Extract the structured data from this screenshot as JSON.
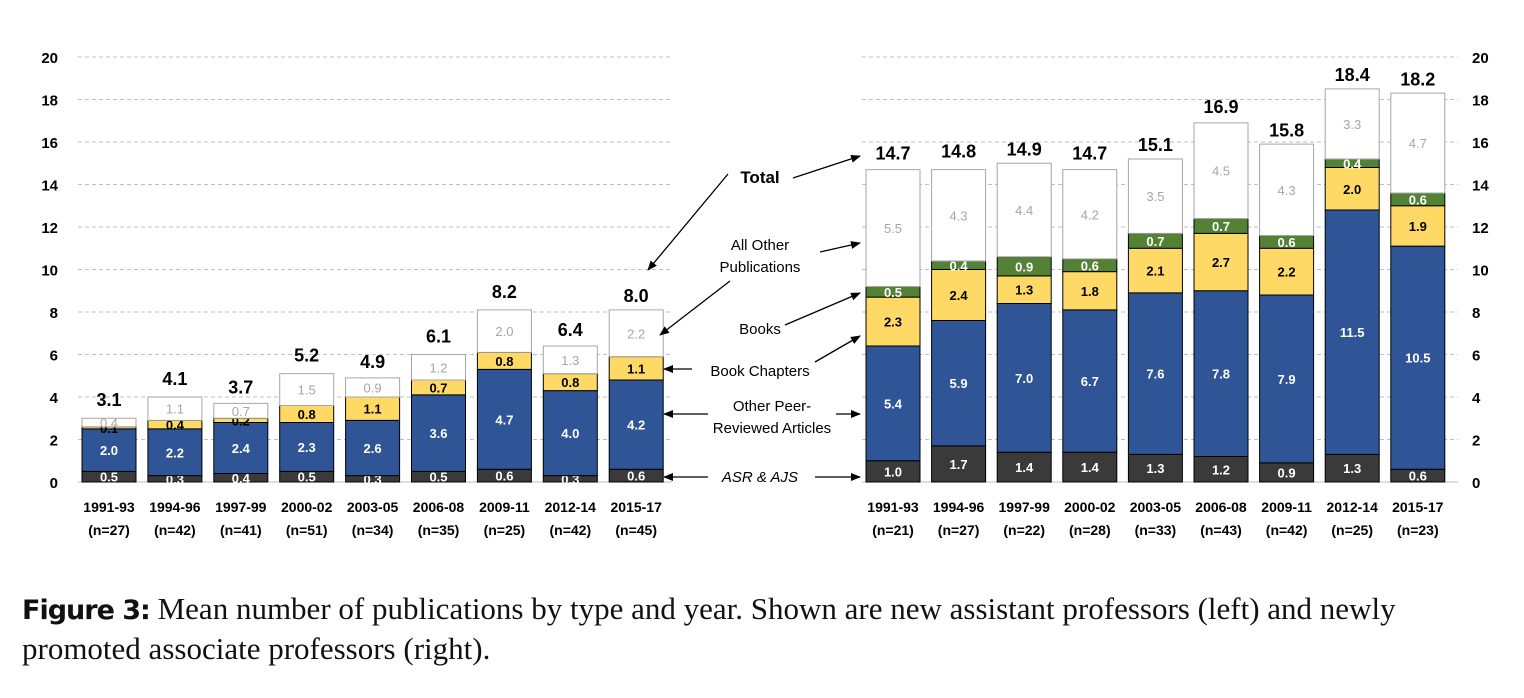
{
  "figure": {
    "caption_label": "Figure 3:",
    "caption_text": "Mean number of publications by type and year. Shown are new assistant professors (left) and newly promoted associate professors (right)."
  },
  "colors": {
    "asr_ajs": "#3a3a3a",
    "peer_reviewed": "#2f5597",
    "book_chapters": "#ffd966",
    "books": "#548235",
    "other": "#ffffff",
    "grid": "#bfbfbf"
  },
  "annotations": [
    {
      "key": "total",
      "lines": [
        "Total"
      ],
      "bold": true,
      "italic": false
    },
    {
      "key": "other",
      "lines": [
        "All Other",
        "Publications"
      ],
      "bold": false,
      "italic": false
    },
    {
      "key": "books",
      "lines": [
        "Books"
      ],
      "bold": false,
      "italic": false
    },
    {
      "key": "chapters",
      "lines": [
        "Book Chapters"
      ],
      "bold": false,
      "italic": false
    },
    {
      "key": "peer",
      "lines": [
        "Other Peer-",
        "Reviewed Articles"
      ],
      "bold": false,
      "italic": false
    },
    {
      "key": "asr",
      "lines": [
        "ASR & AJS"
      ],
      "bold": false,
      "italic": true
    }
  ],
  "chart_data": [
    {
      "type": "bar",
      "stacked": true,
      "panel": "left",
      "ylim": [
        0,
        20
      ],
      "yticks": [
        0,
        2,
        4,
        6,
        8,
        10,
        12,
        14,
        16,
        18,
        20
      ],
      "grid": true,
      "categories": [
        "1991-93",
        "1994-96",
        "1997-99",
        "2000-02",
        "2003-05",
        "2006-08",
        "2009-11",
        "2012-14",
        "2015-17"
      ],
      "sample_sizes": [
        "(n=27)",
        "(n=42)",
        "(n=41)",
        "(n=51)",
        "(n=34)",
        "(n=35)",
        "(n=25)",
        "(n=42)",
        "(n=45)"
      ],
      "series": [
        {
          "name": "ASR & AJS",
          "values": [
            0.5,
            0.3,
            0.4,
            0.5,
            0.3,
            0.5,
            0.6,
            0.3,
            0.6
          ]
        },
        {
          "name": "Other Peer-Reviewed Articles",
          "values": [
            2.0,
            2.2,
            2.4,
            2.3,
            2.6,
            3.6,
            4.7,
            4.0,
            4.2
          ]
        },
        {
          "name": "Book Chapters",
          "values": [
            0.1,
            0.4,
            0.2,
            0.8,
            1.1,
            0.7,
            0.8,
            0.8,
            1.1
          ]
        },
        {
          "name": "Books",
          "values": [
            0.0,
            0.0,
            0.0,
            0.0,
            0.0,
            0.0,
            0.0,
            0.0,
            0.0
          ]
        },
        {
          "name": "All Other Publications",
          "values": [
            0.4,
            1.1,
            0.7,
            1.5,
            0.9,
            1.2,
            2.0,
            1.3,
            2.2
          ]
        }
      ],
      "totals": [
        3.1,
        4.1,
        3.7,
        5.2,
        4.9,
        6.1,
        8.2,
        6.4,
        8.0
      ]
    },
    {
      "type": "bar",
      "stacked": true,
      "panel": "right",
      "ylim": [
        0,
        20
      ],
      "yticks": [
        0,
        2,
        4,
        6,
        8,
        10,
        12,
        14,
        16,
        18,
        20
      ],
      "grid": true,
      "categories": [
        "1991-93",
        "1994-96",
        "1997-99",
        "2000-02",
        "2003-05",
        "2006-08",
        "2009-11",
        "2012-14",
        "2015-17"
      ],
      "sample_sizes": [
        "(n=21)",
        "(n=27)",
        "(n=22)",
        "(n=28)",
        "(n=33)",
        "(n=43)",
        "(n=42)",
        "(n=25)",
        "(n=23)"
      ],
      "series": [
        {
          "name": "ASR & AJS",
          "values": [
            1.0,
            1.7,
            1.4,
            1.4,
            1.3,
            1.2,
            0.9,
            1.3,
            0.6
          ]
        },
        {
          "name": "Other Peer-Reviewed Articles",
          "values": [
            5.4,
            5.9,
            7.0,
            6.7,
            7.6,
            7.8,
            7.9,
            11.5,
            10.5
          ]
        },
        {
          "name": "Book Chapters",
          "values": [
            2.3,
            2.4,
            1.3,
            1.8,
            2.1,
            2.7,
            2.2,
            2.0,
            1.9
          ]
        },
        {
          "name": "Books",
          "values": [
            0.5,
            0.4,
            0.9,
            0.6,
            0.7,
            0.7,
            0.6,
            0.4,
            0.6
          ]
        },
        {
          "name": "All Other Publications",
          "values": [
            5.5,
            4.3,
            4.4,
            4.2,
            3.5,
            4.5,
            4.3,
            3.3,
            4.7
          ]
        }
      ],
      "totals": [
        14.7,
        14.8,
        14.9,
        14.7,
        15.1,
        16.9,
        15.8,
        18.4,
        18.2
      ]
    }
  ]
}
